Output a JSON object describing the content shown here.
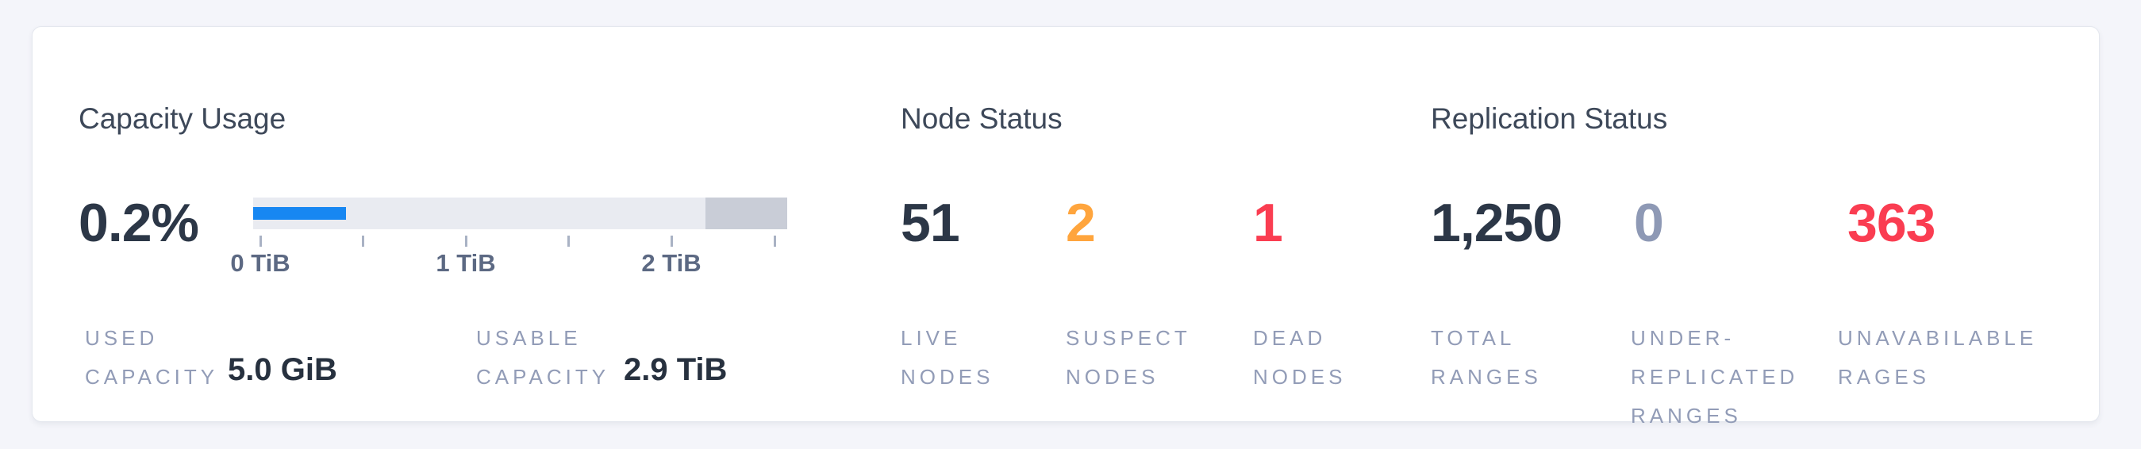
{
  "colors": {
    "page_bg": "#f4f5fa",
    "card_bg": "#ffffff",
    "card_border": "#e4e7ee",
    "section_title": "#3d4859",
    "number_dark": "#2c3747",
    "number_warning": "#ffa53d",
    "number_danger": "#fa3d51",
    "number_muted": "#8e99b5",
    "stat_label": "#929cb7",
    "axis_label": "#5c6983",
    "bar_track": "#e9ebf1",
    "bar_fill_blue": "#1787f2",
    "bar_reserved_gray": "#c9cdd7"
  },
  "capacity": {
    "title": "Capacity Usage",
    "percent": "0.2%",
    "percent_color": "#2c3747",
    "bar": {
      "fill_pct": 17.4,
      "reserved_pct": 15.3
    },
    "axis": {
      "tick_labels": [
        "0 TiB",
        "1 TiB",
        "2 TiB"
      ]
    },
    "stats": [
      {
        "label_lines": [
          "USED",
          "CAPACITY"
        ],
        "value": "5.0 GiB"
      },
      {
        "label_lines": [
          "USABLE",
          "CAPACITY"
        ],
        "value": "2.9 TiB"
      }
    ]
  },
  "nodes": {
    "title": "Node Status",
    "stats": [
      {
        "value": "51",
        "color": "#2c3747",
        "label_lines": [
          "LIVE",
          "NODES"
        ]
      },
      {
        "value": "2",
        "color": "#ffa53d",
        "label_lines": [
          "SUSPECT",
          "NODES"
        ]
      },
      {
        "value": "1",
        "color": "#fa3d51",
        "label_lines": [
          "DEAD",
          "NODES"
        ]
      }
    ]
  },
  "replication": {
    "title": "Replication Status",
    "stats": [
      {
        "value": "1,250",
        "color": "#2c3747",
        "label_lines": [
          "TOTAL",
          "RANGES"
        ]
      },
      {
        "value": "0",
        "color": "#8e99b5",
        "label_lines": [
          "UNDER-",
          "REPLICATED",
          "RANGES"
        ]
      },
      {
        "value": "363",
        "color": "#fa3d51",
        "label_lines": [
          "UNAVABILABLE",
          "RAGES"
        ]
      }
    ]
  }
}
